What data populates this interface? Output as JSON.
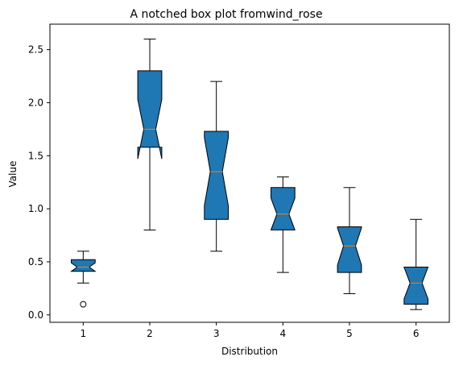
{
  "colors": {
    "box_fill": "#1f77b4",
    "median": "#ff7f0e",
    "line": "#000000",
    "background": "#ffffff"
  },
  "chart_data": {
    "type": "box",
    "notched": true,
    "title": "A notched box plot fromwind_rose",
    "xlabel": "Distribution",
    "ylabel": "Value",
    "ylim": [
      -0.07,
      2.74
    ],
    "categories": [
      "1",
      "2",
      "3",
      "4",
      "5",
      "6"
    ],
    "yticks": [
      0.0,
      0.5,
      1.0,
      1.5,
      2.0,
      2.5
    ],
    "ytick_labels": [
      "0.0",
      "0.5",
      "1.0",
      "1.5",
      "2.0",
      "2.5"
    ],
    "boxes": [
      {
        "label": "1",
        "whisker_low": 0.3,
        "q1": 0.41,
        "median": 0.45,
        "q3": 0.52,
        "whisker_high": 0.6,
        "notch_low": 0.41,
        "notch_high": 0.49,
        "outliers": [
          0.1
        ]
      },
      {
        "label": "2",
        "whisker_low": 0.8,
        "q1": 1.58,
        "median": 1.75,
        "q3": 2.3,
        "whisker_high": 2.6,
        "notch_low": 1.47,
        "notch_high": 2.03,
        "outliers": []
      },
      {
        "label": "3",
        "whisker_low": 0.6,
        "q1": 0.9,
        "median": 1.35,
        "q3": 1.73,
        "whisker_high": 2.2,
        "notch_low": 1.03,
        "notch_high": 1.67,
        "outliers": []
      },
      {
        "label": "4",
        "whisker_low": 0.4,
        "q1": 0.8,
        "median": 0.95,
        "q3": 1.2,
        "whisker_high": 1.3,
        "notch_low": 0.8,
        "notch_high": 1.1,
        "outliers": []
      },
      {
        "label": "5",
        "whisker_low": 0.2,
        "q1": 0.4,
        "median": 0.65,
        "q3": 0.83,
        "whisker_high": 1.2,
        "notch_low": 0.47,
        "notch_high": 0.82,
        "outliers": []
      },
      {
        "label": "6",
        "whisker_low": 0.05,
        "q1": 0.1,
        "median": 0.3,
        "q3": 0.45,
        "whisker_high": 0.9,
        "notch_low": 0.15,
        "notch_high": 0.45,
        "outliers": []
      }
    ]
  }
}
